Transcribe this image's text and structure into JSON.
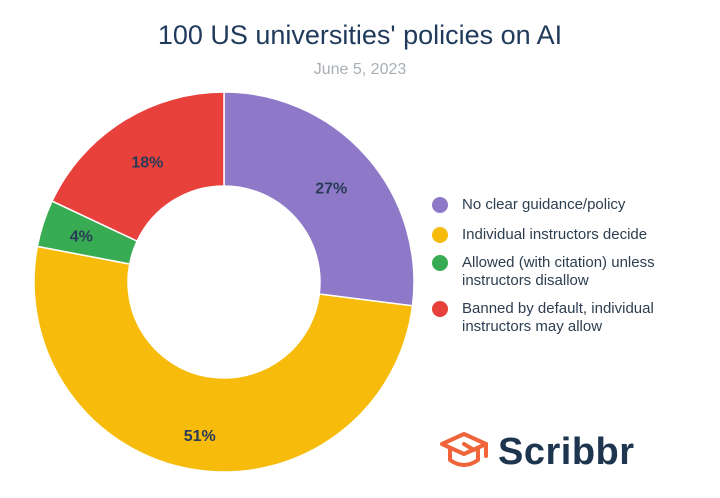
{
  "title": "100 US universities' policies on AI",
  "subtitle": "June 5, 2023",
  "brand": {
    "name": "Scribbr",
    "icon": "graduation-cap-icon",
    "color": "#f0643c"
  },
  "chart_data": {
    "type": "pie",
    "title": "100 US universities' policies on AI",
    "subtitle": "June 5, 2023",
    "donut": true,
    "legend_position": "right",
    "series": [
      {
        "name": "No clear guidance/policy",
        "value": 27,
        "label": "27%",
        "color": "#8e79c8"
      },
      {
        "name": "Individual instructors decide",
        "value": 51,
        "label": "51%",
        "color": "#f7bb0b"
      },
      {
        "name": "Allowed (with citation) unless instructors disallow",
        "value": 4,
        "label": "4%",
        "color": "#37ac52"
      },
      {
        "name": "Banned by default, individual instructors may allow",
        "value": 18,
        "label": "18%",
        "color": "#e8403a"
      }
    ]
  }
}
